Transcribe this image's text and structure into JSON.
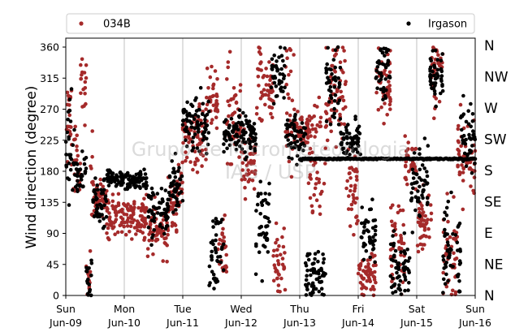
{
  "chart_data": {
    "type": "scatter",
    "xlabel": "",
    "ylabel": "Wind direction (degree)",
    "ylim": [
      0,
      370
    ],
    "xlim": [
      0,
      7
    ],
    "yticks": [
      "0",
      "45",
      "90",
      "135",
      "180",
      "225",
      "270",
      "315",
      "360"
    ],
    "xtick_day": [
      "Sun",
      "Mon",
      "Tue",
      "Wed",
      "Thu",
      "Fri",
      "Sat",
      "Sun"
    ],
    "xtick_date": [
      "Jun-09",
      "Jun-10",
      "Jun-11",
      "Jun-12",
      "Jun-13",
      "Jun-14",
      "Jun-15",
      "Jun-16"
    ],
    "compass_labels": [
      "N",
      "NE",
      "E",
      "SE",
      "S",
      "SW",
      "W",
      "NW",
      "N"
    ],
    "grid": "vertical",
    "legend_position": "top",
    "watermark": [
      "Grupo de Micrometeorologia",
      "IAG / USP"
    ],
    "colors": {
      "034B": "#a52a2a",
      "Irgason": "#000000",
      "grid": "#b0b0b0"
    },
    "series": [
      {
        "name": "034B",
        "color": "#a52a2a",
        "segments": [
          [
            0.0,
            0.12,
            250,
            60
          ],
          [
            0.12,
            0.25,
            190,
            40
          ],
          [
            0.25,
            0.35,
            300,
            40
          ],
          [
            0.35,
            0.42,
            30,
            25
          ],
          [
            0.42,
            0.5,
            160,
            60
          ],
          [
            0.5,
            0.7,
            140,
            20
          ],
          [
            0.7,
            1.4,
            115,
            25
          ],
          [
            1.4,
            1.75,
            95,
            30
          ],
          [
            1.75,
            1.9,
            130,
            40
          ],
          [
            1.9,
            2.0,
            160,
            30
          ],
          [
            2.0,
            2.4,
            230,
            40
          ],
          [
            2.4,
            2.6,
            285,
            35
          ],
          [
            2.6,
            2.75,
            60,
            40
          ],
          [
            2.75,
            3.0,
            250,
            70
          ],
          [
            3.0,
            3.25,
            190,
            40
          ],
          [
            3.25,
            3.55,
            310,
            50
          ],
          [
            3.55,
            3.75,
            45,
            45
          ],
          [
            3.75,
            3.9,
            270,
            70
          ],
          [
            3.9,
            4.15,
            240,
            20
          ],
          [
            4.15,
            4.45,
            200,
            70
          ],
          [
            4.45,
            4.8,
            300,
            60
          ],
          [
            4.8,
            5.0,
            160,
            60
          ],
          [
            5.0,
            5.3,
            30,
            30
          ],
          [
            5.3,
            5.55,
            310,
            50
          ],
          [
            5.55,
            5.8,
            70,
            60
          ],
          [
            5.8,
            6.0,
            190,
            30
          ],
          [
            6.0,
            6.25,
            110,
            40
          ],
          [
            6.25,
            6.45,
            320,
            40
          ],
          [
            6.45,
            6.7,
            60,
            50
          ],
          [
            6.7,
            7.0,
            200,
            50
          ]
        ]
      },
      {
        "name": "Irgason",
        "color": "#000000",
        "segments": [
          [
            0.0,
            0.15,
            200,
            80
          ],
          [
            0.15,
            0.35,
            180,
            20
          ],
          [
            0.35,
            0.45,
            25,
            25
          ],
          [
            0.45,
            0.7,
            140,
            30
          ],
          [
            0.7,
            1.0,
            170,
            10
          ],
          [
            1.0,
            1.4,
            165,
            12
          ],
          [
            1.4,
            1.75,
            120,
            30
          ],
          [
            1.75,
            2.0,
            155,
            30
          ],
          [
            2.0,
            2.45,
            250,
            30
          ],
          [
            2.45,
            2.7,
            60,
            50
          ],
          [
            2.7,
            3.25,
            235,
            25
          ],
          [
            3.25,
            3.5,
            100,
            60
          ],
          [
            3.5,
            3.75,
            320,
            35
          ],
          [
            3.75,
            4.1,
            230,
            30
          ],
          [
            4.1,
            4.45,
            30,
            30
          ],
          [
            4.45,
            4.7,
            300,
            50
          ],
          [
            4.7,
            5.05,
            225,
            20
          ],
          [
            5.05,
            5.3,
            90,
            40
          ],
          [
            5.3,
            5.55,
            330,
            35
          ],
          [
            5.55,
            5.9,
            40,
            40
          ],
          [
            5.9,
            6.2,
            160,
            50
          ],
          [
            6.2,
            6.45,
            320,
            40
          ],
          [
            6.45,
            6.75,
            60,
            60
          ],
          [
            6.75,
            7.0,
            230,
            40
          ]
        ],
        "constant_line": {
          "x_start": 4.0,
          "x_end": 7.0,
          "value": 198
        }
      }
    ]
  }
}
